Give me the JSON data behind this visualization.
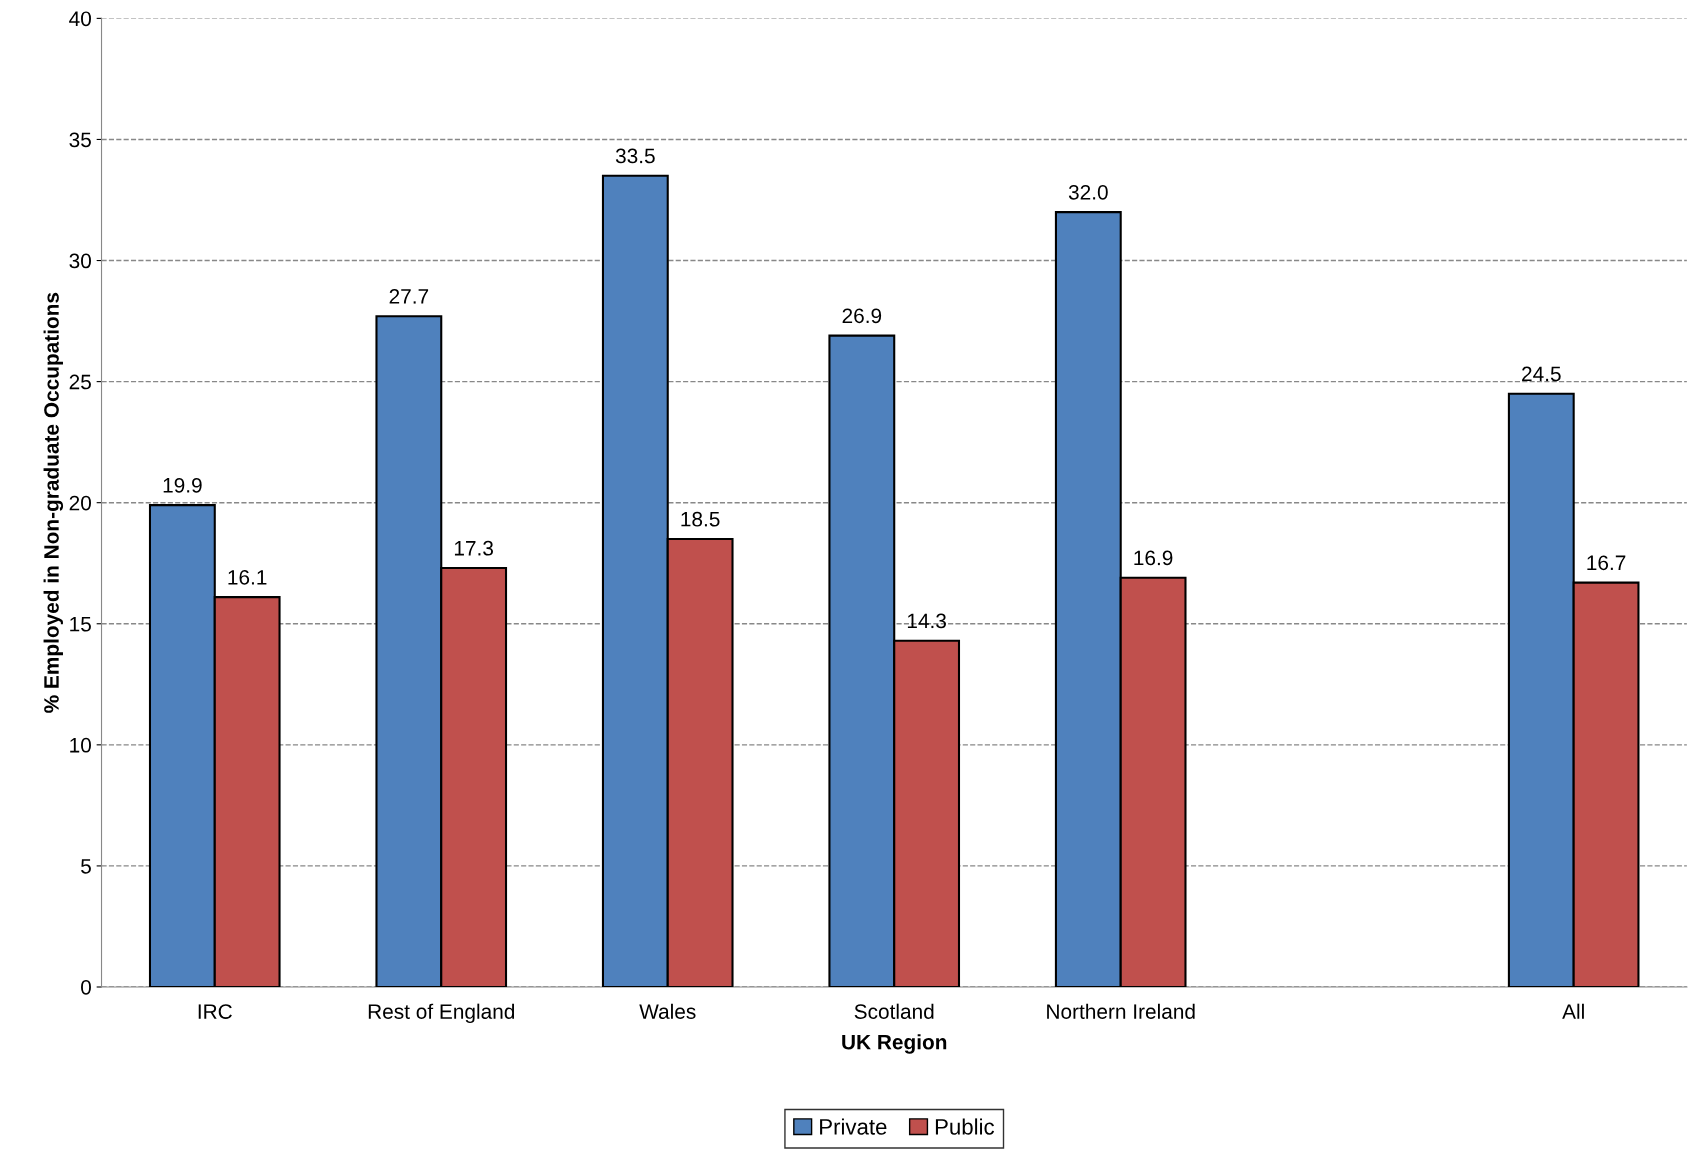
{
  "chart_data": {
    "type": "bar",
    "xlabel": "UK Region",
    "ylabel": "% Employed in Non-graduate Occupations",
    "categories": [
      "IRC",
      "Rest of England",
      "Wales",
      "Scotland",
      "Northern Ireland",
      null,
      "All"
    ],
    "series": [
      {
        "name": "Private",
        "color": "#4f81bd",
        "values": [
          19.9,
          27.7,
          33.5,
          26.9,
          32.0,
          null,
          24.5
        ],
        "value_labels": [
          "19.9",
          "27.7",
          "33.5",
          "26.9",
          "32.0",
          null,
          "24.5"
        ]
      },
      {
        "name": "Public",
        "color": "#c0504d",
        "values": [
          16.1,
          17.3,
          18.5,
          14.3,
          16.9,
          null,
          16.7
        ],
        "value_labels": [
          "16.1",
          "17.3",
          "18.5",
          "14.3",
          "16.9",
          null,
          "16.7"
        ]
      }
    ],
    "ylim": [
      0,
      40
    ],
    "yticks": [
      0,
      5,
      10,
      15,
      20,
      25,
      30,
      35,
      40
    ],
    "grid": "y",
    "legend": "bottom"
  }
}
